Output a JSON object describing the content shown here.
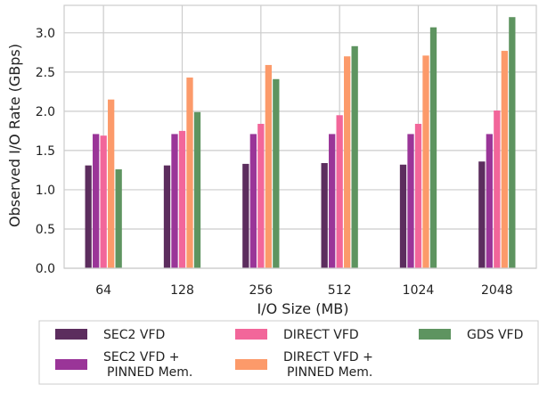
{
  "chart_data": {
    "type": "bar",
    "title": "",
    "xlabel": "I/O Size (MB)",
    "ylabel": "Observed I/O Rate (GBps)",
    "ylim": [
      0,
      3.35
    ],
    "yticks": [
      "0.0",
      "0.5",
      "1.0",
      "1.5",
      "2.0",
      "2.5",
      "3.0"
    ],
    "ytick_values": [
      0,
      0.5,
      1.0,
      1.5,
      2.0,
      2.5,
      3.0
    ],
    "grid": true,
    "legend_placement": "bottom",
    "categories": [
      "64",
      "128",
      "256",
      "512",
      "1024",
      "2048"
    ],
    "series": [
      {
        "name": "SEC2 VFD",
        "name_lines": [
          "SEC2 VFD"
        ],
        "color": "#5c2d5e",
        "values": [
          1.31,
          1.31,
          1.33,
          1.34,
          1.32,
          1.36
        ]
      },
      {
        "name": "SEC2 VFD + PINNED Mem.",
        "name_lines": [
          "SEC2 VFD +",
          "PINNED Mem."
        ],
        "color": "#9a3598",
        "values": [
          1.71,
          1.71,
          1.71,
          1.71,
          1.71,
          1.71
        ]
      },
      {
        "name": "DIRECT VFD",
        "name_lines": [
          "DIRECT VFD"
        ],
        "color": "#f2669a",
        "values": [
          1.69,
          1.75,
          1.84,
          1.95,
          1.84,
          2.01
        ]
      },
      {
        "name": "DIRECT VFD + PINNED Mem.",
        "name_lines": [
          "DIRECT VFD +",
          "PINNED Mem."
        ],
        "color": "#fc9a6a",
        "values": [
          2.15,
          2.43,
          2.59,
          2.7,
          2.71,
          2.77
        ]
      },
      {
        "name": "GDS VFD",
        "name_lines": [
          "GDS VFD"
        ],
        "color": "#5e9460",
        "values": [
          1.26,
          1.99,
          2.41,
          2.83,
          3.07,
          3.2
        ]
      }
    ]
  }
}
